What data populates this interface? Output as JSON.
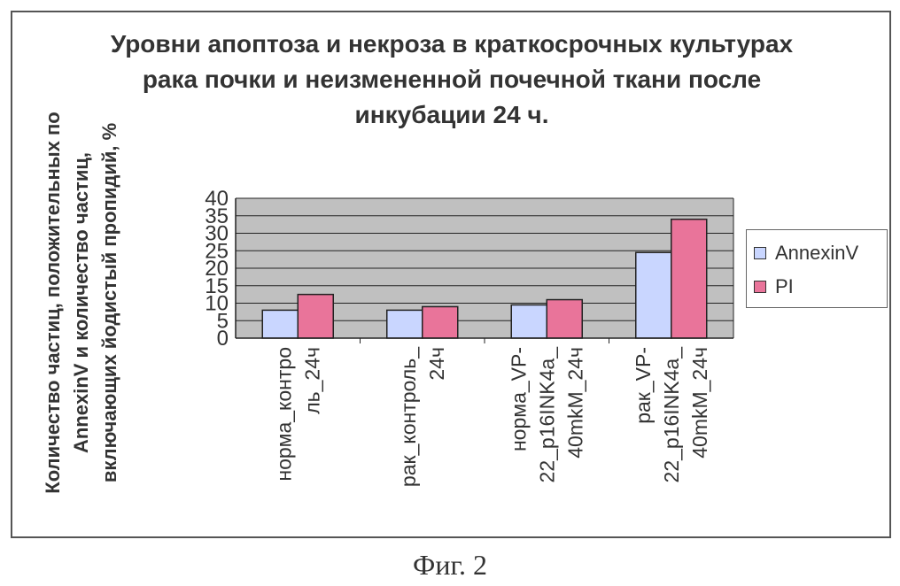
{
  "chart_data": {
    "type": "bar",
    "title": "Уровни апоптоза и некроза в краткосрочных культурах рака почки и неизмененной почечной ткани после инкубации 24 ч.",
    "ylabel": "Количество частиц, положительных по AnnexinV и количество частиц, включающих йодистый пропидий, %",
    "xlabel": "",
    "categories": [
      "норма_контро ль_24ч",
      "рак_контроль_ 24ч",
      "норма_VP- 22_p16INK4a_ 40mkM_24ч",
      "рак_VP- 22_p16INK4a_ 40mkM_24ч"
    ],
    "series": [
      {
        "name": "AnnexinV",
        "values": [
          8,
          8,
          9.5,
          24.5
        ],
        "color": "#c9d6ff"
      },
      {
        "name": "PI",
        "values": [
          12.5,
          9,
          11,
          34
        ],
        "color": "#e9749a"
      }
    ],
    "ylim": [
      0,
      40
    ],
    "yticks": [
      "0",
      "5",
      "10",
      "15",
      "20",
      "25",
      "30",
      "35",
      "40"
    ],
    "grid": true,
    "legend": "right",
    "plot_background": "#c0c0c0"
  },
  "caption": "Фиг. 2"
}
